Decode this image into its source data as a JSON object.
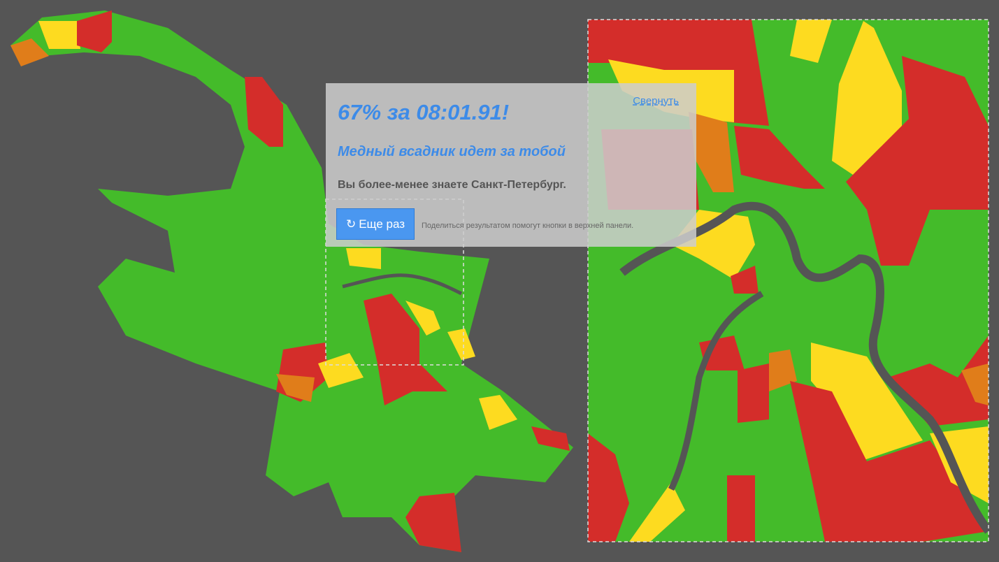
{
  "result": {
    "score": "67% за 08:01.91!",
    "collapse": "Свернуть",
    "verdict": "Медный всадник идет за тобой",
    "description": "Вы более-менее знаете Санкт-Петербург.",
    "retry": "Еще раз",
    "share_hint": "Поделиться результатом помогут кнопки в верхней панели."
  }
}
